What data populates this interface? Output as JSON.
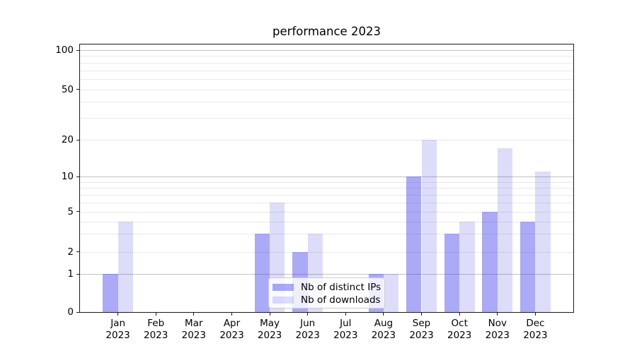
{
  "chart_data": {
    "type": "bar",
    "title": "performance 2023",
    "year_label": "2023",
    "months": [
      "Jan",
      "Feb",
      "Mar",
      "Apr",
      "May",
      "Jun",
      "Jul",
      "Aug",
      "Sep",
      "Oct",
      "Nov",
      "Dec"
    ],
    "series": [
      {
        "name": "Nb of distinct IPs",
        "color": "#aaaaf4",
        "css_color": "rgba(53,53,234,0.42)",
        "values": [
          1,
          0,
          0,
          0,
          3,
          2,
          0,
          1,
          10,
          3,
          5,
          4
        ]
      },
      {
        "name": "Nb of downloads",
        "color": "#dcdcf9",
        "css_color": "rgba(28,28,221,0.15)",
        "values": [
          4,
          0,
          0,
          0,
          6,
          3,
          0,
          1,
          20,
          4,
          17,
          11
        ]
      }
    ],
    "y_axis": {
      "ticks": [
        0,
        1,
        2,
        5,
        10,
        20,
        50,
        100
      ],
      "scale": "symlog-like",
      "range": [
        0,
        110
      ],
      "major_gridlines": [
        1,
        10,
        100
      ],
      "minor_gridlines": [
        2,
        3,
        4,
        5,
        6,
        7,
        8,
        9,
        20,
        30,
        40,
        50,
        60,
        70,
        80,
        90
      ],
      "major_grid_color": "#c2c2c2",
      "minor_grid_color": "#e9e9e9"
    },
    "x_axis": {
      "tick_label_lines": 2
    },
    "legend": {
      "position": "lower center"
    },
    "scale_anchors": [
      [
        0,
        0.0
      ],
      [
        1,
        0.1417
      ],
      [
        2,
        0.2257
      ],
      [
        5,
        0.3753
      ],
      [
        10,
        0.5066
      ],
      [
        20,
        0.643
      ],
      [
        50,
        0.832
      ],
      [
        100,
        0.979
      ]
    ],
    "grid": true,
    "spine_color": "#1a1a1a"
  }
}
